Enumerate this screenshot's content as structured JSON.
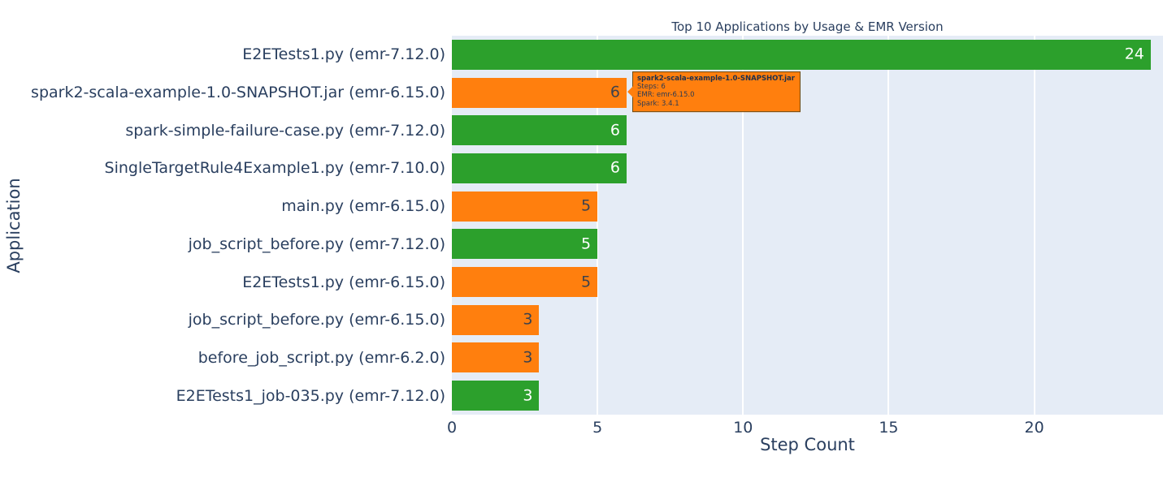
{
  "chart_data": {
    "type": "bar",
    "orientation": "horizontal",
    "title": "Top 10 Applications by Usage & EMR Version",
    "xlabel": "Step Count",
    "ylabel": "Application",
    "xlim": [
      0,
      24.4
    ],
    "xticks": [
      0,
      5,
      10,
      15,
      20
    ],
    "grid": true,
    "legend": "none",
    "categories": [
      "E2ETests1.py (emr-7.12.0)",
      "spark2-scala-example-1.0-SNAPSHOT.jar (emr-6.15.0)",
      "spark-simple-failure-case.py (emr-7.12.0)",
      "SingleTargetRule4Example1.py (emr-7.10.0)",
      "main.py (emr-6.15.0)",
      "job_script_before.py (emr-7.12.0)",
      "E2ETests1.py (emr-6.15.0)",
      "job_script_before.py (emr-6.15.0)",
      "before_job_script.py (emr-6.2.0)",
      "E2ETests1_job-035.py (emr-7.12.0)"
    ],
    "values": [
      24,
      6,
      6,
      6,
      5,
      5,
      5,
      3,
      3,
      3
    ],
    "bar_colors": [
      "#2ca02c",
      "#ff7f0e",
      "#2ca02c",
      "#2ca02c",
      "#ff7f0e",
      "#2ca02c",
      "#ff7f0e",
      "#ff7f0e",
      "#ff7f0e",
      "#2ca02c"
    ],
    "value_label_colors": [
      "#ffffff",
      "#3d424d",
      "#ffffff",
      "#ffffff",
      "#3d424d",
      "#ffffff",
      "#3d424d",
      "#3d424d",
      "#3d424d",
      "#ffffff"
    ]
  },
  "tooltip": {
    "target_category": "spark2-scala-example-1.0-SNAPSHOT.jar (emr-6.15.0)",
    "title": "spark2-scala-example-1.0-SNAPSHOT.jar",
    "lines": [
      "Steps: 6",
      "EMR: emr-6.15.0",
      "Spark: 3.4.1"
    ]
  },
  "colors": {
    "bar_green": "#2ca02c",
    "bar_orange": "#ff7f0e",
    "plot_background": "#e5ecf6",
    "gridline": "#ffffff",
    "axis_text": "#2a3f5f",
    "tooltip_background": "#ff7f0e",
    "tooltip_border": "#6e4a12"
  }
}
